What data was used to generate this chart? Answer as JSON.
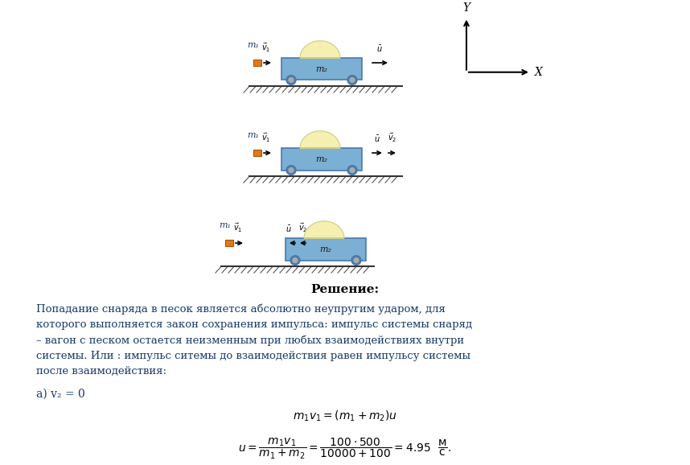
{
  "bg_color": "#ffffff",
  "text_color": "#1a3a6b",
  "title": "Решение:",
  "paragraph": "Попадание снаряда в песок является абсолютно неупругим ударом, для\nкоторого выполняется закон сохранения импульса: импульс системы снаряд\n– вагон с песком остается неизменным при любых взаимодействиях внутри\nсистемы. Или : импульс ситемы до взаимодействия равен импульсу системы\nпосле взаимодействия:",
  "case_a": "а) v₂ = 0",
  "eq1": "$m_1v_1 = (m_1+m_2)u$",
  "eq2": "$u = \\dfrac{m_1 v_1}{m_1+m_2} = \\dfrac{100\\cdot500}{10000+100} = 4.95 \\ \\ \\dfrac{\\text{м}}{\\text{с}}.$",
  "wagon_color": "#7bafd4",
  "wagon_dark": "#4a7aaa",
  "shell_color": "#e07820",
  "sand_color": "#f5f0b0",
  "ground_hatch_color": "#555555",
  "axis_color": "#000000"
}
